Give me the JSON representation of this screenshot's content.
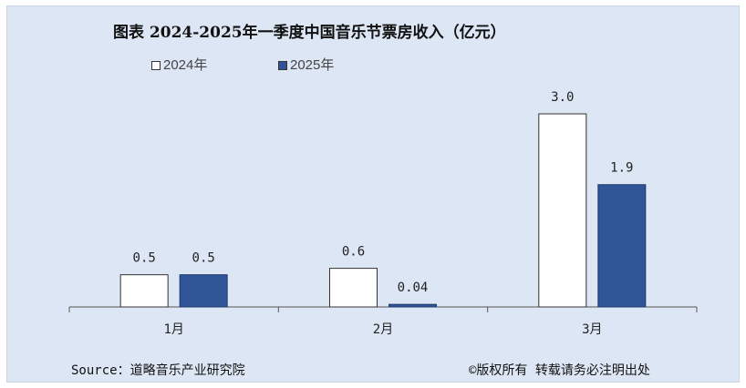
{
  "chart_data": {
    "type": "bar",
    "title": "图表 2024-2025年一季度中国音乐节票房收入（亿元）",
    "categories": [
      "1月",
      "2月",
      "3月"
    ],
    "series": [
      {
        "name": "2024年",
        "values": [
          0.5,
          0.6,
          3.0
        ],
        "labels": [
          "0.5",
          "0.6",
          "3.0"
        ],
        "color": "#ffffff"
      },
      {
        "name": "2025年",
        "values": [
          0.5,
          0.04,
          1.9
        ],
        "labels": [
          "0.5",
          "0.04",
          "1.9"
        ],
        "color": "#2f5597"
      }
    ],
    "xlabel": "",
    "ylabel": "",
    "ylim": [
      0,
      3.0
    ],
    "grid": false,
    "legend": "top-left"
  },
  "footer": {
    "source": "Source：道略音乐产业研究院",
    "copyright": "©版权所有  转载请务必注明出处"
  }
}
